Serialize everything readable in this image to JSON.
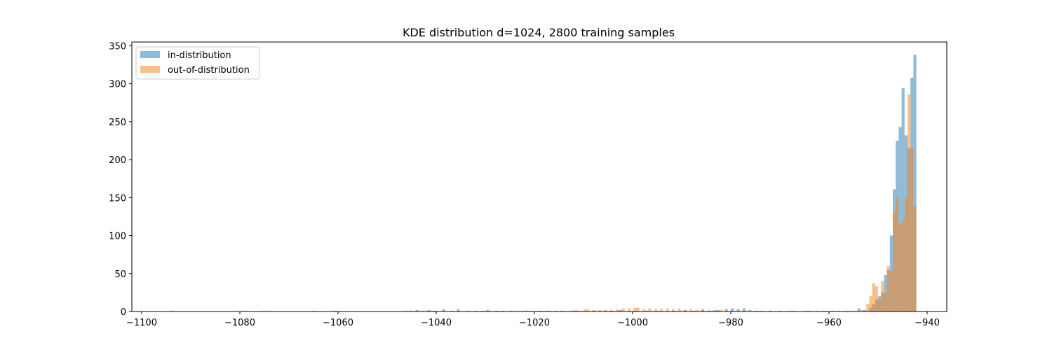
{
  "chart_data": {
    "type": "bar",
    "title": "KDE distribution d=1024, 2800 training samples",
    "xlabel": "",
    "ylabel": "",
    "xlim": [
      -1102,
      -936
    ],
    "ylim": [
      0,
      355
    ],
    "bin_width": 0.6,
    "xticks": [
      -1100,
      -1080,
      -1060,
      -1040,
      -1020,
      -1000,
      -980,
      -960,
      -940
    ],
    "yticks": [
      0,
      50,
      100,
      150,
      200,
      250,
      300,
      350
    ],
    "grid": false,
    "legend_position": "top-left",
    "series": [
      {
        "name": "in-distribution",
        "color": "#1f77b4",
        "opacity": 0.5,
        "bins": [
          {
            "x": -1046.6,
            "y": 1
          },
          {
            "x": -1045.4,
            "y": 1
          },
          {
            "x": -1044.2,
            "y": 2
          },
          {
            "x": -1043.0,
            "y": 1
          },
          {
            "x": -1041.8,
            "y": 2
          },
          {
            "x": -1040.6,
            "y": 1
          },
          {
            "x": -1038.8,
            "y": 3
          },
          {
            "x": -1037.0,
            "y": 1
          },
          {
            "x": -1035.8,
            "y": 3
          },
          {
            "x": -1034.0,
            "y": 1
          },
          {
            "x": -1032.2,
            "y": 1
          },
          {
            "x": -1031.0,
            "y": 1
          },
          {
            "x": -1029.8,
            "y": 2
          },
          {
            "x": -1028.0,
            "y": 1
          },
          {
            "x": -1026.8,
            "y": 1
          },
          {
            "x": -1025.0,
            "y": 1
          },
          {
            "x": -1022.0,
            "y": 1
          },
          {
            "x": -1019.0,
            "y": 1
          },
          {
            "x": -1017.2,
            "y": 1
          },
          {
            "x": -1016.0,
            "y": 1
          },
          {
            "x": -1014.8,
            "y": 1
          },
          {
            "x": -1012.4,
            "y": 1
          },
          {
            "x": -1011.2,
            "y": 1
          },
          {
            "x": -1008.2,
            "y": 1
          },
          {
            "x": -1005.8,
            "y": 1
          },
          {
            "x": -1002.8,
            "y": 2
          },
          {
            "x": -999.8,
            "y": 1
          },
          {
            "x": -997.4,
            "y": 1
          },
          {
            "x": -995.0,
            "y": 1
          },
          {
            "x": -992.0,
            "y": 1
          },
          {
            "x": -989.6,
            "y": 2
          },
          {
            "x": -987.8,
            "y": 1
          },
          {
            "x": -986.0,
            "y": 2
          },
          {
            "x": -984.2,
            "y": 1
          },
          {
            "x": -983.0,
            "y": 2
          },
          {
            "x": -981.2,
            "y": 3
          },
          {
            "x": -980.0,
            "y": 4
          },
          {
            "x": -978.8,
            "y": 3
          },
          {
            "x": -977.6,
            "y": 4
          },
          {
            "x": -976.4,
            "y": 2
          },
          {
            "x": -975.2,
            "y": 1
          },
          {
            "x": -974.0,
            "y": 1
          },
          {
            "x": -972.2,
            "y": 1
          },
          {
            "x": -970.4,
            "y": 1
          },
          {
            "x": -967.4,
            "y": 1
          },
          {
            "x": -964.4,
            "y": 1
          },
          {
            "x": -961.4,
            "y": 1
          },
          {
            "x": -958.4,
            "y": 1
          },
          {
            "x": -955.4,
            "y": 1
          },
          {
            "x": -954.2,
            "y": 4
          },
          {
            "x": -953.0,
            "y": 2
          },
          {
            "x": -951.8,
            "y": 5
          },
          {
            "x": -951.2,
            "y": 10
          },
          {
            "x": -950.6,
            "y": 16
          },
          {
            "x": -950.0,
            "y": 20
          },
          {
            "x": -949.4,
            "y": 25
          },
          {
            "x": -948.8,
            "y": 48
          },
          {
            "x": -948.2,
            "y": 55
          },
          {
            "x": -947.6,
            "y": 100
          },
          {
            "x": -947.0,
            "y": 161
          },
          {
            "x": -946.4,
            "y": 225
          },
          {
            "x": -945.8,
            "y": 243
          },
          {
            "x": -945.2,
            "y": 294
          },
          {
            "x": -944.6,
            "y": 232
          },
          {
            "x": -944.0,
            "y": 215
          },
          {
            "x": -943.4,
            "y": 308
          },
          {
            "x": -942.8,
            "y": 338
          }
        ]
      },
      {
        "name": "out-of-distribution",
        "color": "#ff7f0e",
        "opacity": 0.5,
        "bins": [
          {
            "x": -1094.0,
            "y": 1
          },
          {
            "x": -1075.4,
            "y": 1
          },
          {
            "x": -1065.2,
            "y": 1
          },
          {
            "x": -1061.0,
            "y": 1
          },
          {
            "x": -1041.2,
            "y": 1
          },
          {
            "x": -1030.4,
            "y": 1
          },
          {
            "x": -1026.8,
            "y": 1
          },
          {
            "x": -1022.6,
            "y": 1
          },
          {
            "x": -1020.8,
            "y": 1
          },
          {
            "x": -1019.6,
            "y": 1
          },
          {
            "x": -1017.8,
            "y": 1
          },
          {
            "x": -1014.2,
            "y": 1
          },
          {
            "x": -1013.0,
            "y": 1
          },
          {
            "x": -1011.8,
            "y": 2
          },
          {
            "x": -1010.0,
            "y": 3
          },
          {
            "x": -1009.4,
            "y": 3
          },
          {
            "x": -1008.2,
            "y": 2
          },
          {
            "x": -1007.0,
            "y": 2
          },
          {
            "x": -1005.8,
            "y": 2
          },
          {
            "x": -1004.6,
            "y": 2
          },
          {
            "x": -1003.4,
            "y": 3
          },
          {
            "x": -1002.2,
            "y": 4
          },
          {
            "x": -1001.0,
            "y": 4
          },
          {
            "x": -999.8,
            "y": 5
          },
          {
            "x": -999.2,
            "y": 5
          },
          {
            "x": -998.0,
            "y": 3
          },
          {
            "x": -996.8,
            "y": 4
          },
          {
            "x": -995.6,
            "y": 3
          },
          {
            "x": -994.4,
            "y": 3
          },
          {
            "x": -993.2,
            "y": 4
          },
          {
            "x": -992.0,
            "y": 3
          },
          {
            "x": -990.8,
            "y": 4
          },
          {
            "x": -989.6,
            "y": 2
          },
          {
            "x": -988.4,
            "y": 3
          },
          {
            "x": -987.2,
            "y": 2
          },
          {
            "x": -986.0,
            "y": 3
          },
          {
            "x": -984.8,
            "y": 2
          },
          {
            "x": -983.6,
            "y": 2
          },
          {
            "x": -982.4,
            "y": 2
          },
          {
            "x": -981.2,
            "y": 1
          },
          {
            "x": -977.6,
            "y": 1
          },
          {
            "x": -974.6,
            "y": 1
          },
          {
            "x": -972.2,
            "y": 1
          },
          {
            "x": -968.0,
            "y": 1
          },
          {
            "x": -965.0,
            "y": 1
          },
          {
            "x": -962.6,
            "y": 1
          },
          {
            "x": -959.6,
            "y": 1
          },
          {
            "x": -956.6,
            "y": 1
          },
          {
            "x": -953.6,
            "y": 2
          },
          {
            "x": -952.4,
            "y": 10
          },
          {
            "x": -951.8,
            "y": 20
          },
          {
            "x": -951.2,
            "y": 37
          },
          {
            "x": -950.6,
            "y": 33
          },
          {
            "x": -950.0,
            "y": 15
          },
          {
            "x": -949.4,
            "y": 40
          },
          {
            "x": -948.8,
            "y": 25
          },
          {
            "x": -948.2,
            "y": 60
          },
          {
            "x": -947.6,
            "y": 53
          },
          {
            "x": -947.0,
            "y": 131
          },
          {
            "x": -946.4,
            "y": 150
          },
          {
            "x": -945.8,
            "y": 115
          },
          {
            "x": -945.2,
            "y": 120
          },
          {
            "x": -944.6,
            "y": 150
          },
          {
            "x": -944.0,
            "y": 286
          },
          {
            "x": -943.4,
            "y": 216
          },
          {
            "x": -942.8,
            "y": 138
          }
        ]
      }
    ]
  }
}
